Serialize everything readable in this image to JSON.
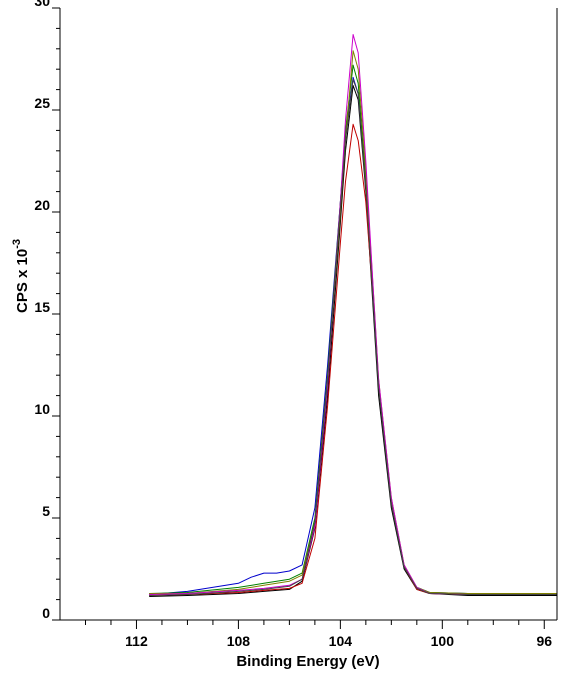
{
  "chart_data": {
    "type": "line",
    "title": "",
    "xlabel": "Binding Energy (eV)",
    "ylabel": {
      "base": "CPS x 10",
      "exponent": "-3"
    },
    "x_reversed": true,
    "xlim": [
      115,
      95.5
    ],
    "ylim": [
      0,
      30
    ],
    "x_ticks": [
      112,
      108,
      104,
      100,
      96
    ],
    "x_tick_labels": [
      "112",
      "108",
      "104",
      "100",
      "96"
    ],
    "y_ticks": [
      0,
      5,
      10,
      15,
      20,
      25,
      30
    ],
    "y_tick_labels": [
      "0",
      "5",
      "10",
      "15",
      "20",
      "25",
      "30"
    ],
    "grid": false,
    "legend": "none",
    "series_colors": [
      "#000000",
      "#c00000",
      "#0000cc",
      "#008000",
      "#808000",
      "#cc00cc",
      "#444444"
    ],
    "series": [
      {
        "color": "#000000",
        "x": [
          111.5,
          110,
          108,
          107,
          106,
          105.5,
          105,
          104.5,
          104,
          103.8,
          103.5,
          103.3,
          103,
          102.7,
          102.5,
          102,
          101.5,
          101,
          100.5,
          99,
          97,
          95.5
        ],
        "y": [
          1.15,
          1.2,
          1.3,
          1.4,
          1.5,
          1.9,
          4.5,
          11,
          19.5,
          23,
          26.2,
          25.5,
          21,
          15,
          11,
          5.5,
          2.5,
          1.5,
          1.3,
          1.2,
          1.2,
          1.2
        ]
      },
      {
        "color": "#c00000",
        "x": [
          111.5,
          110,
          108,
          107,
          106,
          105.5,
          105,
          104.5,
          104,
          103.8,
          103.5,
          103.3,
          103,
          102.7,
          102.5,
          102,
          101.5,
          101,
          100.5,
          99,
          97,
          95.5
        ],
        "y": [
          1.2,
          1.25,
          1.35,
          1.45,
          1.55,
          1.8,
          4.0,
          10.5,
          18.5,
          21.5,
          24.3,
          23.5,
          20.5,
          15.5,
          11.5,
          5.8,
          2.6,
          1.5,
          1.3,
          1.25,
          1.25,
          1.25
        ]
      },
      {
        "color": "#0000cc",
        "x": [
          111.5,
          110,
          108,
          107.5,
          107,
          106.5,
          106,
          105.5,
          105,
          104.5,
          104,
          103.8,
          103.5,
          103.3,
          103,
          102.7,
          102.5,
          102,
          101.5,
          101,
          100.5,
          99,
          97,
          95.5
        ],
        "y": [
          1.25,
          1.4,
          1.8,
          2.1,
          2.3,
          2.3,
          2.4,
          2.7,
          5.5,
          12.5,
          20.5,
          23.8,
          26.6,
          25.8,
          21.5,
          15.5,
          11.5,
          5.8,
          2.6,
          1.6,
          1.35,
          1.3,
          1.3,
          1.3
        ]
      },
      {
        "color": "#008000",
        "x": [
          111.5,
          110,
          108,
          107,
          106,
          105.5,
          105,
          104.5,
          104,
          103.8,
          103.5,
          103.3,
          103,
          102.7,
          102.5,
          102,
          101.5,
          101,
          100.5,
          99,
          97,
          95.5
        ],
        "y": [
          1.3,
          1.35,
          1.6,
          1.8,
          2.0,
          2.3,
          5.0,
          12,
          20.5,
          24,
          27.2,
          26.3,
          21.5,
          15.5,
          11.5,
          5.8,
          2.6,
          1.6,
          1.35,
          1.3,
          1.3,
          1.3
        ]
      },
      {
        "color": "#808000",
        "x": [
          111.5,
          110,
          108,
          107,
          106,
          105.5,
          105,
          104.5,
          104,
          103.8,
          103.5,
          103.3,
          103,
          102.7,
          102.5,
          102,
          101.5,
          101,
          100.5,
          99,
          97,
          95.5
        ],
        "y": [
          1.3,
          1.3,
          1.5,
          1.7,
          1.9,
          2.2,
          4.8,
          11.8,
          20,
          23.5,
          27.9,
          27.0,
          22,
          16,
          11.8,
          6.0,
          2.7,
          1.6,
          1.35,
          1.3,
          1.3,
          1.3
        ]
      },
      {
        "color": "#cc00cc",
        "x": [
          111.5,
          110,
          108,
          107,
          106,
          105.5,
          105,
          104.5,
          104,
          103.8,
          103.5,
          103.3,
          103,
          102.7,
          102.5,
          102,
          101.5,
          101,
          100.5,
          99,
          97,
          95.5
        ],
        "y": [
          1.25,
          1.3,
          1.45,
          1.55,
          1.7,
          2.0,
          4.6,
          11.5,
          20.5,
          24.5,
          28.7,
          27.8,
          22.5,
          16,
          11.8,
          6.0,
          2.7,
          1.6,
          1.3,
          1.25,
          1.25,
          1.25
        ]
      },
      {
        "color": "#444444",
        "x": [
          111.5,
          110,
          108,
          107,
          106,
          105.5,
          105,
          104.5,
          104,
          103.8,
          103.5,
          103.3,
          103,
          102.7,
          102.5,
          102,
          101.5,
          101,
          100.5,
          99,
          97,
          95.5
        ],
        "y": [
          1.2,
          1.25,
          1.4,
          1.5,
          1.65,
          2.0,
          4.8,
          11.8,
          20.2,
          23.5,
          26.5,
          25.8,
          21.2,
          15.4,
          11.4,
          5.7,
          2.6,
          1.55,
          1.3,
          1.25,
          1.25,
          1.25
        ]
      }
    ]
  }
}
